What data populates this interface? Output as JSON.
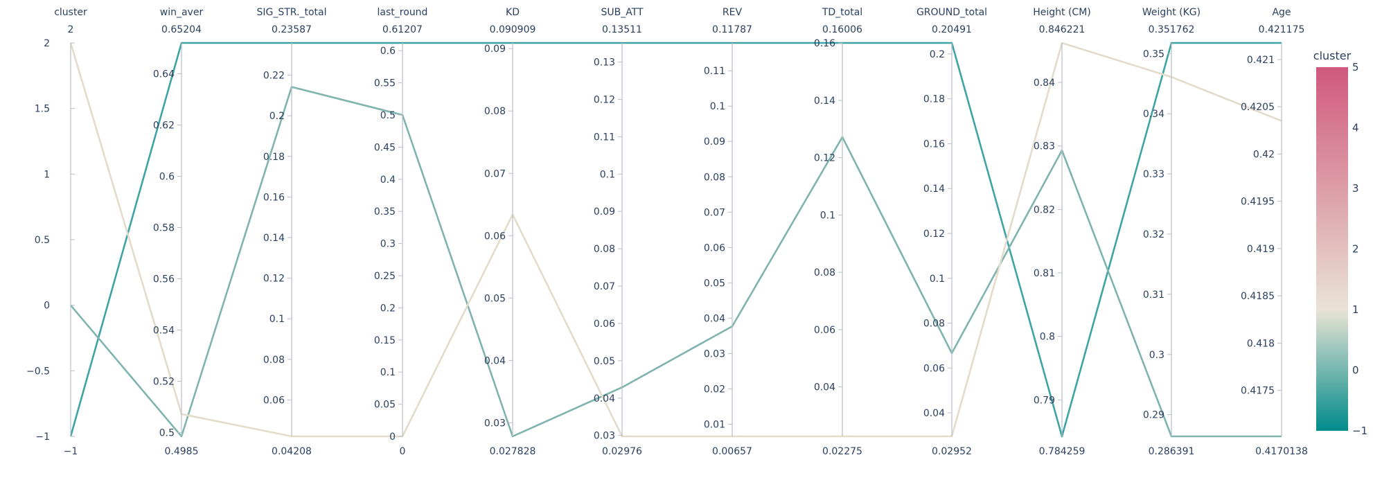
{
  "chart_data": {
    "type": "parallel_coordinates",
    "color_dimension": "cluster",
    "colorbar": {
      "title": "cluster",
      "range": [
        -1,
        5
      ],
      "ticks": [
        -1,
        0,
        1,
        2,
        3,
        4,
        5
      ],
      "tick_labels": [
        "−1",
        "0",
        "1",
        "2",
        "3",
        "4",
        "5"
      ],
      "colorscale": [
        [
          0,
          "#008b8b"
        ],
        [
          0.333,
          "#e9e3d4"
        ],
        [
          1,
          "#d0587e"
        ]
      ]
    },
    "dimensions": [
      {
        "name": "cluster",
        "range": [
          -1,
          2
        ],
        "range_labels": [
          "−1",
          "2"
        ],
        "ticks": [
          -1,
          -0.5,
          0,
          0.5,
          1,
          1.5,
          2
        ],
        "tick_labels": [
          "−1",
          "−0.5",
          "0",
          "0.5",
          "1",
          "1.5",
          "2"
        ]
      },
      {
        "name": "win_aver",
        "range": [
          0.4985,
          0.65204
        ],
        "range_labels": [
          "0.4985",
          "0.65204"
        ],
        "ticks": [
          0.5,
          0.52,
          0.54,
          0.56,
          0.58,
          0.6,
          0.62,
          0.64
        ],
        "tick_labels": [
          "0.5",
          "0.52",
          "0.54",
          "0.56",
          "0.58",
          "0.6",
          "0.62",
          "0.64"
        ]
      },
      {
        "name": "SIG_STR._total",
        "range": [
          0.04208,
          0.23587
        ],
        "range_labels": [
          "0.04208",
          "0.23587"
        ],
        "ticks": [
          0.06,
          0.08,
          0.1,
          0.12,
          0.14,
          0.16,
          0.18,
          0.2,
          0.22
        ],
        "tick_labels": [
          "0.06",
          "0.08",
          "0.1",
          "0.12",
          "0.14",
          "0.16",
          "0.18",
          "0.2",
          "0.22"
        ]
      },
      {
        "name": "last_round",
        "range": [
          0,
          0.61207
        ],
        "range_labels": [
          "0",
          "0.61207"
        ],
        "ticks": [
          0,
          0.05,
          0.1,
          0.15,
          0.2,
          0.25,
          0.3,
          0.35,
          0.4,
          0.45,
          0.5,
          0.55,
          0.6
        ],
        "tick_labels": [
          "0",
          "0.05",
          "0.1",
          "0.15",
          "0.2",
          "0.25",
          "0.3",
          "0.35",
          "0.4",
          "0.45",
          "0.5",
          "0.55",
          "0.6"
        ]
      },
      {
        "name": "KD",
        "range": [
          0.027828,
          0.090909
        ],
        "range_labels": [
          "0.027828",
          "0.090909"
        ],
        "ticks": [
          0.03,
          0.04,
          0.05,
          0.06,
          0.07,
          0.08,
          0.09
        ],
        "tick_labels": [
          "0.03",
          "0.04",
          "0.05",
          "0.06",
          "0.07",
          "0.08",
          "0.09"
        ]
      },
      {
        "name": "SUB_ATT",
        "range": [
          0.02976,
          0.13511
        ],
        "range_labels": [
          "0.02976",
          "0.13511"
        ],
        "ticks": [
          0.03,
          0.04,
          0.05,
          0.06,
          0.07,
          0.08,
          0.09,
          0.1,
          0.11,
          0.12,
          0.13
        ],
        "tick_labels": [
          "0.03",
          "0.04",
          "0.05",
          "0.06",
          "0.07",
          "0.08",
          "0.09",
          "0.1",
          "0.11",
          "0.12",
          "0.13"
        ]
      },
      {
        "name": "REV",
        "range": [
          0.00657,
          0.11787
        ],
        "range_labels": [
          "0.00657",
          "0.11787"
        ],
        "ticks": [
          0.01,
          0.02,
          0.03,
          0.04,
          0.05,
          0.06,
          0.07,
          0.08,
          0.09,
          0.1,
          0.11
        ],
        "tick_labels": [
          "0.01",
          "0.02",
          "0.03",
          "0.04",
          "0.05",
          "0.06",
          "0.07",
          "0.08",
          "0.09",
          "0.1",
          "0.11"
        ]
      },
      {
        "name": "TD_total",
        "range": [
          0.02275,
          0.16006
        ],
        "range_labels": [
          "0.02275",
          "0.16006"
        ],
        "ticks": [
          0.04,
          0.06,
          0.08,
          0.1,
          0.12,
          0.14,
          0.16
        ],
        "tick_labels": [
          "0.04",
          "0.06",
          "0.08",
          "0.1",
          "0.12",
          "0.14",
          "0.16"
        ]
      },
      {
        "name": "GROUND_total",
        "range": [
          0.02952,
          0.20491
        ],
        "range_labels": [
          "0.02952",
          "0.20491"
        ],
        "ticks": [
          0.04,
          0.06,
          0.08,
          0.1,
          0.12,
          0.14,
          0.16,
          0.18,
          0.2
        ],
        "tick_labels": [
          "0.04",
          "0.06",
          "0.08",
          "0.1",
          "0.12",
          "0.14",
          "0.16",
          "0.18",
          "0.2"
        ]
      },
      {
        "name": "Height (CM)",
        "range": [
          0.784259,
          0.846221
        ],
        "range_labels": [
          "0.784259",
          "0.846221"
        ],
        "ticks": [
          0.79,
          0.8,
          0.81,
          0.82,
          0.83,
          0.84
        ],
        "tick_labels": [
          "0.79",
          "0.8",
          "0.81",
          "0.82",
          "0.83",
          "0.84"
        ]
      },
      {
        "name": "Weight (KG)",
        "range": [
          0.286391,
          0.351762
        ],
        "range_labels": [
          "0.286391",
          "0.351762"
        ],
        "ticks": [
          0.29,
          0.3,
          0.31,
          0.32,
          0.33,
          0.34,
          0.35
        ],
        "tick_labels": [
          "0.29",
          "0.3",
          "0.31",
          "0.32",
          "0.33",
          "0.34",
          "0.35"
        ]
      },
      {
        "name": "Age",
        "range": [
          0.4170138,
          0.421175
        ],
        "range_labels": [
          "0.4170138",
          "0.421175"
        ],
        "ticks": [
          0.4175,
          0.418,
          0.4185,
          0.419,
          0.4195,
          0.42,
          0.4205,
          0.421
        ],
        "tick_labels": [
          "0.4175",
          "0.418",
          "0.4185",
          "0.419",
          "0.4195",
          "0.42",
          "0.4205",
          "0.421"
        ]
      }
    ],
    "lines": [
      {
        "cluster": -1,
        "color": "#3ea3a4",
        "values": [
          -1,
          0.65204,
          0.23587,
          0.61207,
          0.090909,
          0.13511,
          0.11787,
          0.16006,
          0.20491,
          0.784259,
          0.351762,
          0.421175
        ]
      },
      {
        "cluster": 0,
        "color": "#7fb3ae",
        "values": [
          0,
          0.4985,
          0.2142,
          0.5,
          0.027828,
          0.0429,
          0.0377,
          0.1272,
          0.0666,
          0.8293,
          0.286391,
          0.4170138
        ]
      },
      {
        "cluster": 2,
        "color": "#e3dccb",
        "values": [
          2,
          0.5072,
          0.04208,
          0,
          0.0634,
          0.02976,
          0.00657,
          0.02275,
          0.02952,
          0.846221,
          0.3461,
          0.42035
        ]
      }
    ]
  }
}
